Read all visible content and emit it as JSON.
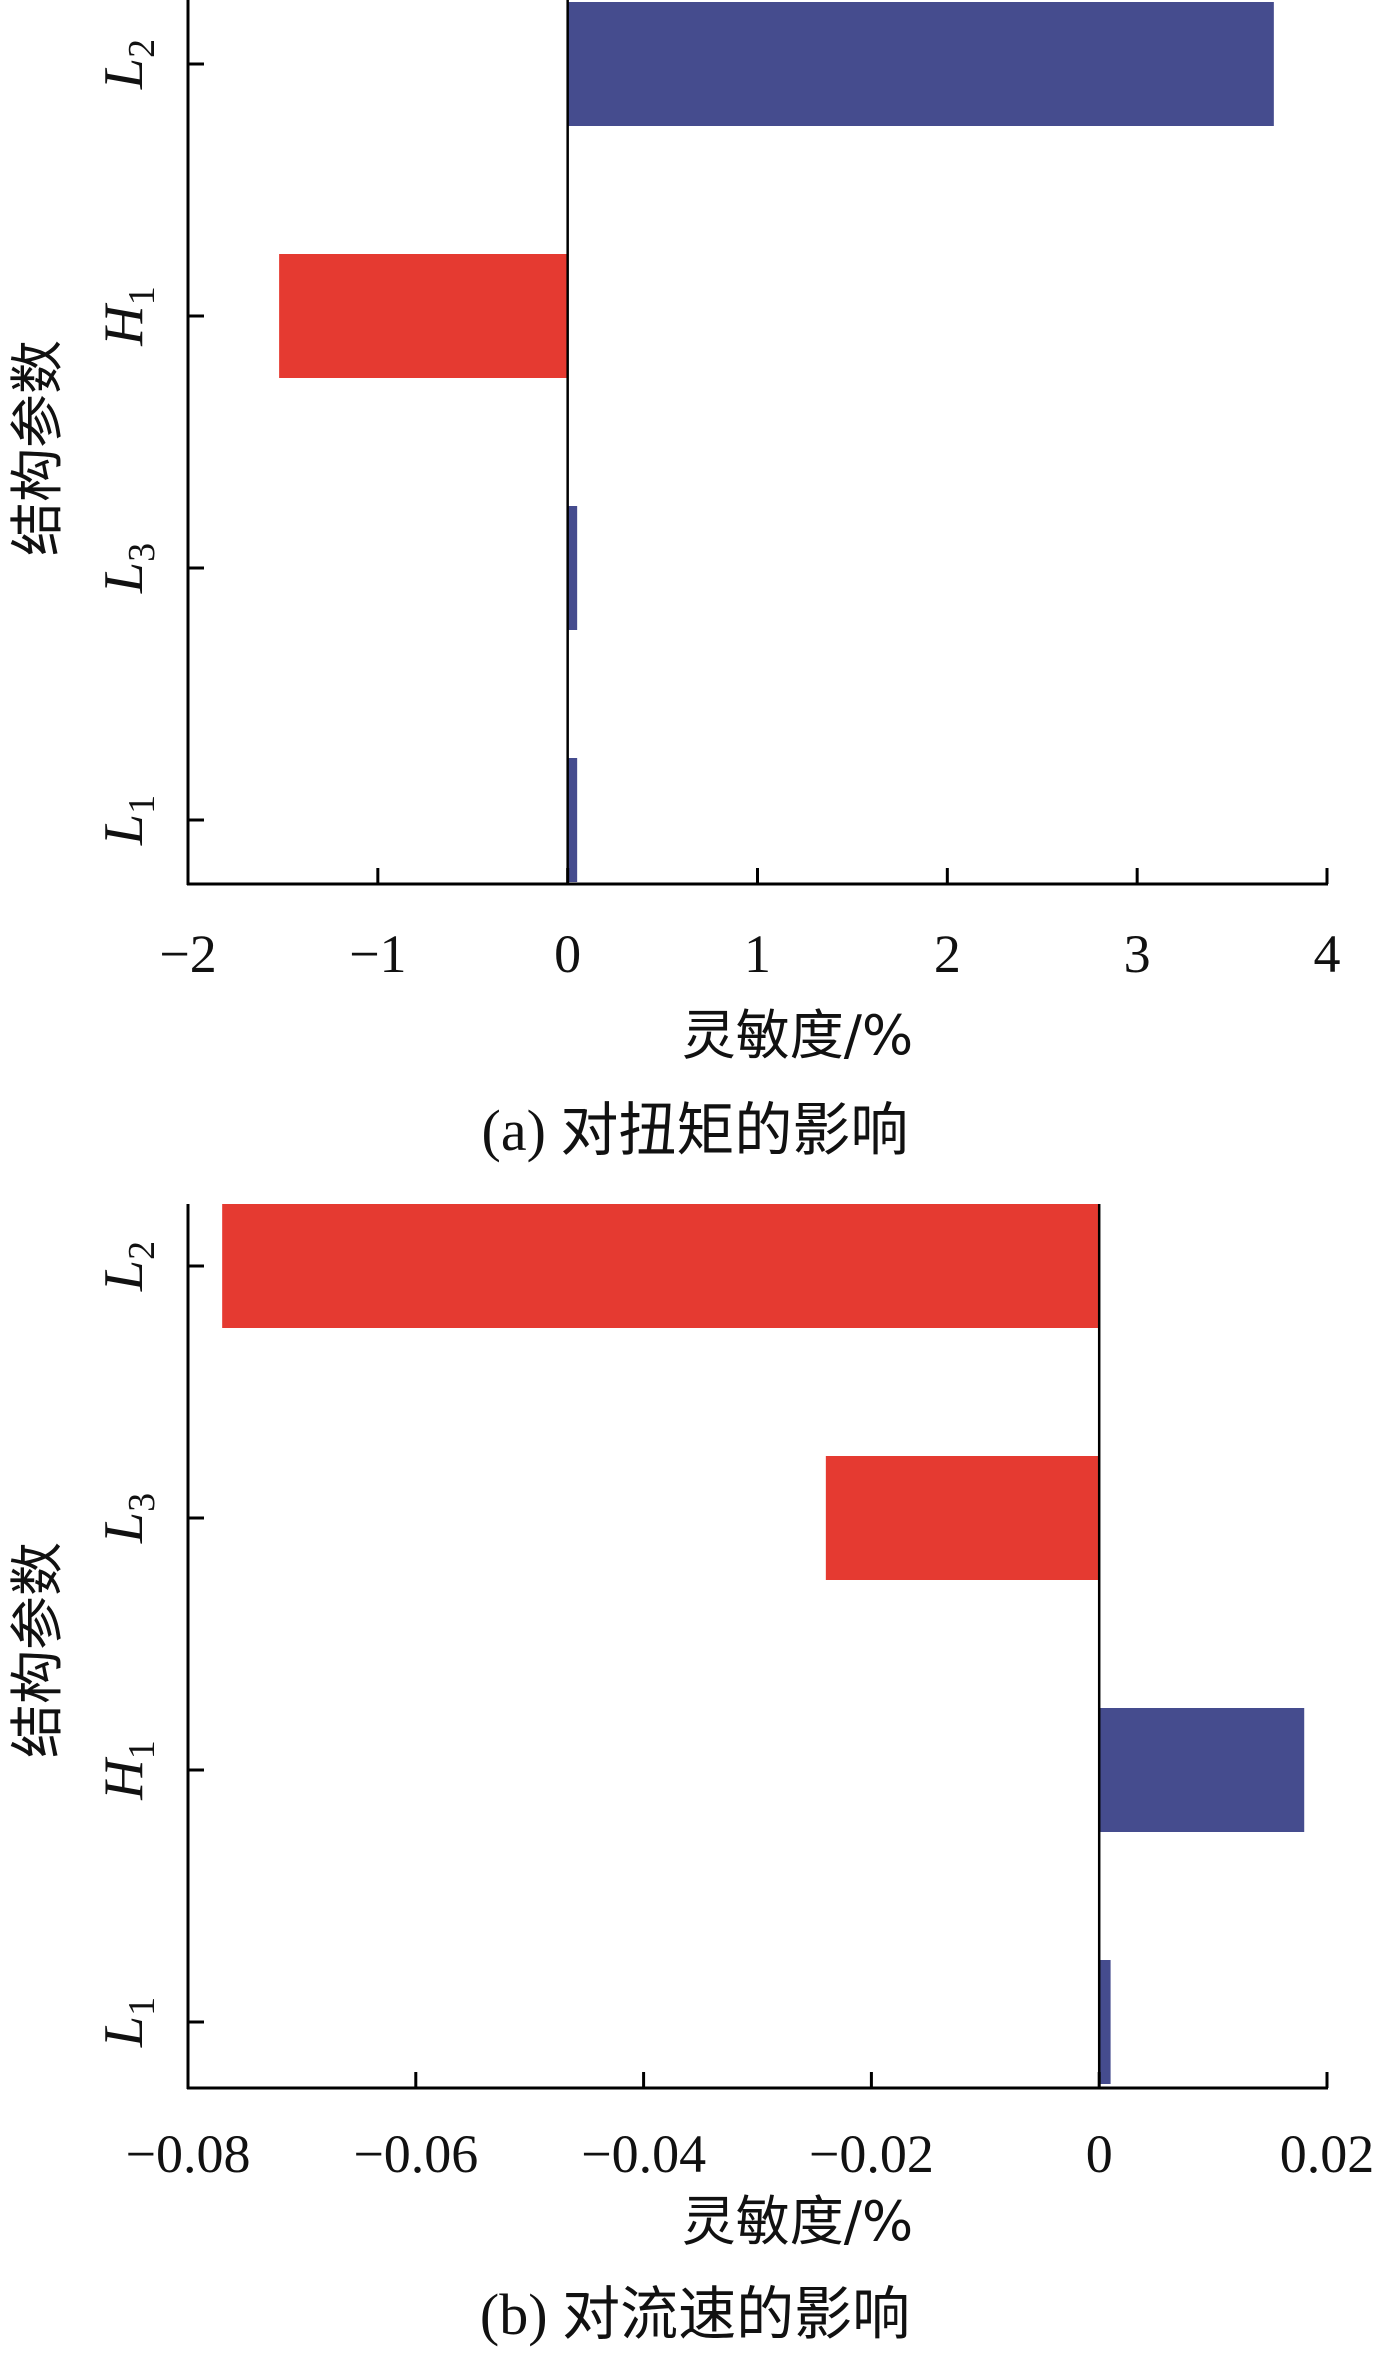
{
  "chart_data": [
    {
      "type": "bar",
      "orientation": "horizontal",
      "caption": "(a) 对扭矩的影响",
      "caption_letter": "(a)",
      "caption_text": "对扭矩的影响",
      "xlabel": "灵敏度/%",
      "ylabel": "结构参数",
      "xlim": [
        -2,
        4
      ],
      "xticks": [
        -2,
        -1,
        0,
        1,
        2,
        3,
        4
      ],
      "xtick_labels": [
        "−2",
        "−1",
        "0",
        "1",
        "2",
        "3",
        "4"
      ],
      "categories": [
        {
          "symbol": "L",
          "sub": "2",
          "value": 3.72
        },
        {
          "symbol": "H",
          "sub": "1",
          "value": -1.52
        },
        {
          "symbol": "L",
          "sub": "3",
          "value": 0.05
        },
        {
          "symbol": "L",
          "sub": "1",
          "value": 0.05
        }
      ],
      "colors": {
        "positive": "#454C8E",
        "negative": "#E53A31"
      },
      "grid": false,
      "legend": "none"
    },
    {
      "type": "bar",
      "orientation": "horizontal",
      "caption": "(b) 对流速的影响",
      "caption_letter": "(b)",
      "caption_text": "对流速的影响",
      "xlabel": "灵敏度/%",
      "ylabel": "结构参数",
      "xlim": [
        -0.08,
        0.02
      ],
      "xticks": [
        -0.08,
        -0.06,
        -0.04,
        -0.02,
        0,
        0.02
      ],
      "xtick_labels": [
        "−0.08",
        "−0.06",
        "−0.04",
        "−0.02",
        "0",
        "0.02"
      ],
      "categories": [
        {
          "symbol": "L",
          "sub": "2",
          "value": -0.077
        },
        {
          "symbol": "L",
          "sub": "3",
          "value": -0.024
        },
        {
          "symbol": "H",
          "sub": "1",
          "value": 0.018
        },
        {
          "symbol": "L",
          "sub": "1",
          "value": 0.001
        }
      ],
      "colors": {
        "positive": "#454C8E",
        "negative": "#E53A31"
      },
      "grid": false,
      "legend": "none"
    }
  ]
}
